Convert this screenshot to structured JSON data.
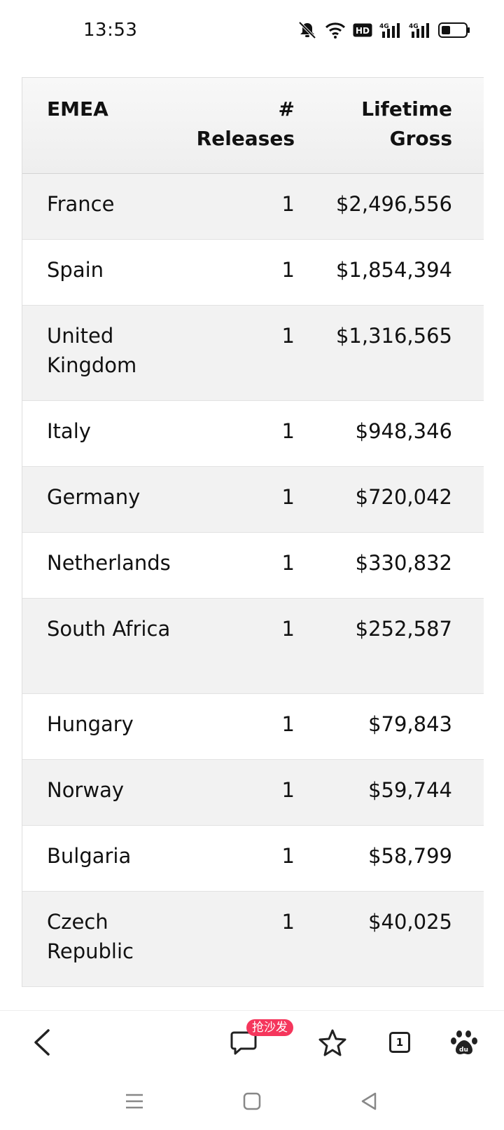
{
  "status": {
    "time": "13:53",
    "icons": [
      "mute-bell-icon",
      "wifi-icon",
      "hd-icon",
      "signal-4g-icon",
      "signal-4g-icon",
      "battery-icon"
    ],
    "hd_label": "HD",
    "net1": "4G",
    "net2": "4G"
  },
  "table": {
    "headers": {
      "region": "EMEA",
      "releases": "# Releases",
      "gross": "Lifetime Gross"
    },
    "rows": [
      {
        "country": "France",
        "releases": "1",
        "gross": "$2,496,556"
      },
      {
        "country": "Spain",
        "releases": "1",
        "gross": "$1,854,394"
      },
      {
        "country": "United Kingdom",
        "releases": "1",
        "gross": "$1,316,565"
      },
      {
        "country": "Italy",
        "releases": "1",
        "gross": "$948,346"
      },
      {
        "country": "Germany",
        "releases": "1",
        "gross": "$720,042"
      },
      {
        "country": "Netherlands",
        "releases": "1",
        "gross": "$330,832"
      },
      {
        "country": "South Africa",
        "releases": "1",
        "gross": "$252,587"
      },
      {
        "country": "Hungary",
        "releases": "1",
        "gross": "$79,843"
      },
      {
        "country": "Norway",
        "releases": "1",
        "gross": "$59,744"
      },
      {
        "country": "Bulgaria",
        "releases": "1",
        "gross": "$58,799"
      },
      {
        "country": "Czech Republic",
        "releases": "1",
        "gross": "$40,025"
      }
    ]
  },
  "toolbar": {
    "comment_badge": "抢沙发",
    "tab_count": "1"
  },
  "colors": {
    "badge": "#f5365c",
    "row_alt": "#f2f2f2"
  }
}
